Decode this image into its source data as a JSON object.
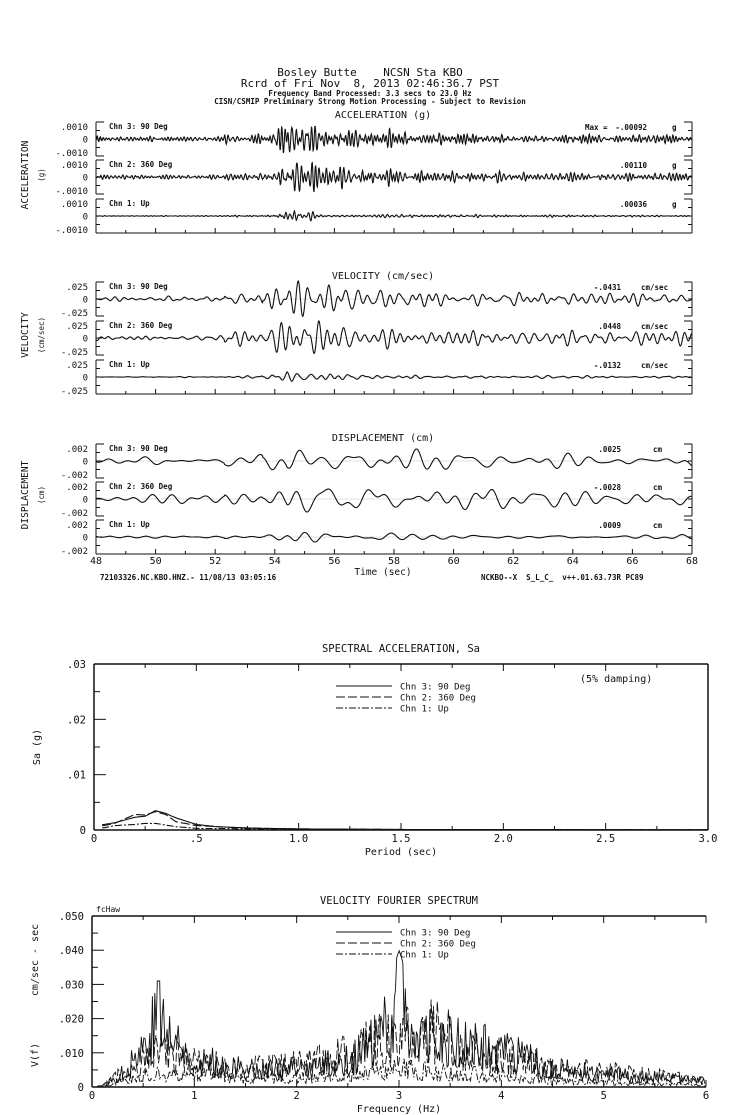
{
  "header": {
    "station": "Bosley Butte    NCSN Sta KBO",
    "record": "Rcrd of Fri Nov  8, 2013 02:46:36.7 PST",
    "band": "Frequency Band Processed: 3.3 secs to 23.0 Hz",
    "processing": "CISN/CSMIP Preliminary Strong Motion Processing - Subject to Revision"
  },
  "seismograms": {
    "time_axis": {
      "label": "Time (sec)",
      "range": [
        48,
        68
      ],
      "ticks": [
        "48",
        "50",
        "52",
        "54",
        "56",
        "58",
        "60",
        "62",
        "64",
        "66",
        "68"
      ],
      "footer_left": "72103326.NC.KBO.HNZ.- 11/08/13 03:05:16",
      "footer_right": "NCKBO--X  S_L_C_  v++.01.63.73R PC89"
    },
    "max_prefix": "Max =",
    "panels": [
      {
        "title": "ACCELERATION (g)",
        "ylabel": "ACCELERATION",
        "yunit": "(g)",
        "ticks": {
          "top": ".0010",
          "zero": "0",
          "bottom": "-.0010"
        },
        "channels": [
          {
            "label": "Chn 3: 90 Deg",
            "max": "-.00092",
            "unit": "g"
          },
          {
            "label": "Chn 2: 360 Deg",
            "max": ".00110",
            "unit": "g"
          },
          {
            "label": "Chn 1: Up",
            "max": ".00036",
            "unit": "g"
          }
        ]
      },
      {
        "title": "VELOCITY (cm/sec)",
        "ylabel": "VELOCITY",
        "yunit": "(cm/sec)",
        "ticks": {
          "top": ".025",
          "zero": "0",
          "bottom": "-.025"
        },
        "channels": [
          {
            "label": "Chn 3: 90 Deg",
            "max": "-.0431",
            "unit": "cm/sec"
          },
          {
            "label": "Chn 2: 360 Deg",
            "max": ".0448",
            "unit": "cm/sec"
          },
          {
            "label": "Chn 1: Up",
            "max": "-.0132",
            "unit": "cm/sec"
          }
        ]
      },
      {
        "title": "DISPLACEMENT (cm)",
        "ylabel": "DISPLACEMENT",
        "yunit": "(cm)",
        "ticks": {
          "top": ".002",
          "zero": "0",
          "bottom": "-.002"
        },
        "channels": [
          {
            "label": "Chn 3: 90 Deg",
            "max": ".0025",
            "unit": "cm"
          },
          {
            "label": "Chn 2: 360 Deg",
            "max": "-.0028",
            "unit": "cm"
          },
          {
            "label": "Chn 1: Up",
            "max": ".0009",
            "unit": "cm"
          }
        ]
      }
    ]
  },
  "chart_data": [
    {
      "type": "line",
      "title": "SPECTRAL ACCELERATION, Sa",
      "annotation": "(5% damping)",
      "xlabel": "Period (sec)",
      "ylabel": "Sa (g)",
      "xlim": [
        0,
        3.0
      ],
      "ylim": [
        0,
        0.03
      ],
      "xticks": [
        "0",
        ".5",
        "1.0",
        "1.5",
        "2.0",
        "2.5",
        "3.0"
      ],
      "yticks": [
        "0",
        ".01",
        ".02",
        ".03"
      ],
      "legend": "top-center",
      "series": [
        {
          "name": "Chn 3: 90 Deg",
          "style": "solid",
          "x": [
            0.05,
            0.1,
            0.15,
            0.2,
            0.25,
            0.3,
            0.35,
            0.4,
            0.5,
            0.6,
            0.8,
            1.0,
            1.5,
            2.0,
            3.0
          ],
          "y": [
            0.001,
            0.0013,
            0.0018,
            0.0023,
            0.0025,
            0.0035,
            0.003,
            0.0022,
            0.001,
            0.0006,
            0.0003,
            0.0002,
            0.0001,
            5e-05,
            3e-05
          ]
        },
        {
          "name": "Chn 2: 360 Deg",
          "style": "dashed",
          "x": [
            0.05,
            0.1,
            0.15,
            0.2,
            0.25,
            0.3,
            0.35,
            0.4,
            0.5,
            0.7,
            1.0,
            1.5,
            3.0
          ],
          "y": [
            0.0008,
            0.0012,
            0.002,
            0.0028,
            0.0027,
            0.0033,
            0.0028,
            0.0015,
            0.0008,
            0.0004,
            0.0002,
            0.0001,
            3e-05
          ]
        },
        {
          "name": "Chn 1: Up",
          "style": "dash-dot",
          "x": [
            0.05,
            0.1,
            0.15,
            0.2,
            0.25,
            0.3,
            0.35,
            0.4,
            0.5,
            1.0,
            3.0
          ],
          "y": [
            0.0004,
            0.0008,
            0.0009,
            0.001,
            0.0012,
            0.0012,
            0.0009,
            0.0006,
            0.0003,
            0.0001,
            2e-05
          ]
        }
      ]
    },
    {
      "type": "line",
      "title": "VELOCITY FOURIER SPECTRUM",
      "corner_label": "fcHaw",
      "xlabel": "Frequency (Hz)",
      "ylabel": "V(f)",
      "ylabel_unit": "cm/sec - sec",
      "xlim": [
        0,
        6
      ],
      "ylim": [
        0,
        0.05
      ],
      "xticks": [
        "0",
        "1",
        "2",
        "3",
        "4",
        "5",
        "6"
      ],
      "yticks": [
        "0",
        ".010",
        ".020",
        ".030",
        ".040",
        ".050"
      ],
      "legend": "top-center",
      "series": [
        {
          "name": "Chn 3: 90 Deg",
          "style": "solid",
          "x": [
            0.1,
            0.3,
            0.65,
            1.0,
            1.5,
            2.0,
            2.5,
            2.8,
            3.0,
            3.2,
            3.5,
            4.0,
            4.5,
            5.0,
            5.5,
            6.0
          ],
          "y": [
            0.0005,
            0.006,
            0.03,
            0.012,
            0.008,
            0.008,
            0.012,
            0.02,
            0.04,
            0.022,
            0.02,
            0.016,
            0.008,
            0.006,
            0.004,
            0.003
          ]
        },
        {
          "name": "Chn 2: 360 Deg",
          "style": "dashed",
          "x": [
            0.1,
            0.3,
            0.65,
            1.0,
            1.5,
            2.0,
            2.5,
            2.8,
            3.0,
            3.3,
            3.6,
            4.0,
            4.5,
            5.0,
            5.5,
            6.0
          ],
          "y": [
            0.0005,
            0.006,
            0.015,
            0.012,
            0.008,
            0.01,
            0.014,
            0.02,
            0.022,
            0.026,
            0.018,
            0.014,
            0.008,
            0.007,
            0.005,
            0.003
          ]
        },
        {
          "name": "Chn 1: Up",
          "style": "dash-dot",
          "x": [
            0.1,
            0.3,
            0.65,
            1.0,
            1.5,
            2.0,
            2.5,
            3.0,
            3.5,
            4.0,
            4.5,
            5.0,
            6.0
          ],
          "y": [
            0.0003,
            0.003,
            0.006,
            0.006,
            0.004,
            0.004,
            0.005,
            0.008,
            0.006,
            0.005,
            0.003,
            0.002,
            0.001
          ]
        }
      ]
    }
  ]
}
